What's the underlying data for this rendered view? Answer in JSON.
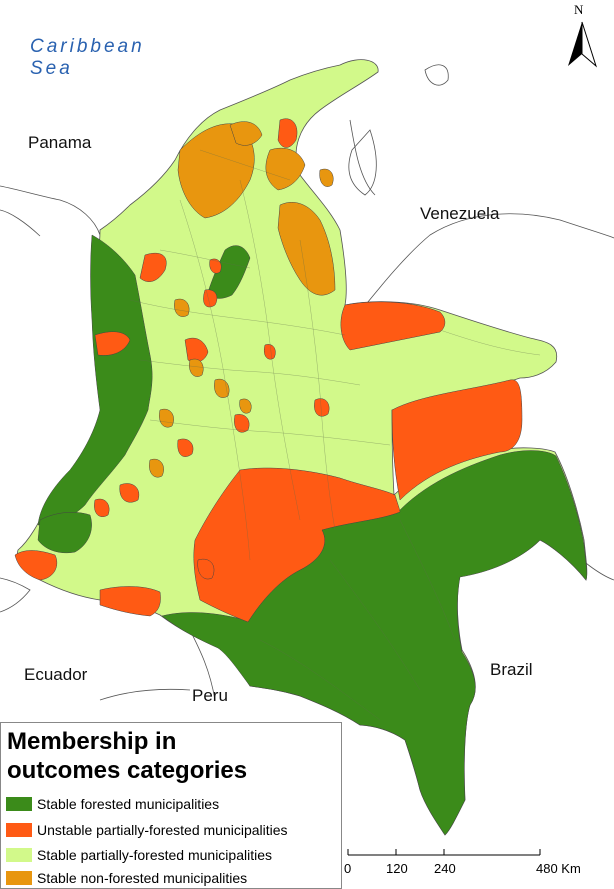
{
  "labels": {
    "sea_line1": "Caribbean",
    "sea_line2": "Sea",
    "panama": "Panama",
    "venezuela": "Venezuela",
    "ecuador": "Ecuador",
    "peru": "Peru",
    "brazil": "Brazil"
  },
  "north_arrow": {
    "label": "N"
  },
  "legend": {
    "title_line1": "Membership in",
    "title_line2": "outcomes categories",
    "items": [
      {
        "label": "Stable forested municipalities",
        "color": "#3b8b1a"
      },
      {
        "label": "Unstable partially-forested municipalities",
        "color": "#ff5a14"
      },
      {
        "label": "Stable partially-forested municipalities",
        "color": "#d2f98a"
      },
      {
        "label": "Stable non-forested municipalities",
        "color": "#e8960f"
      }
    ]
  },
  "scale_bar": {
    "ticks": [
      "0",
      "120",
      "240",
      "480 Km"
    ]
  },
  "colors": {
    "forested": "#3b8b1a",
    "unstable": "#ff5a14",
    "partial": "#d2f98a",
    "nonforested": "#e8960f",
    "sea_label": "#2a62b0"
  }
}
